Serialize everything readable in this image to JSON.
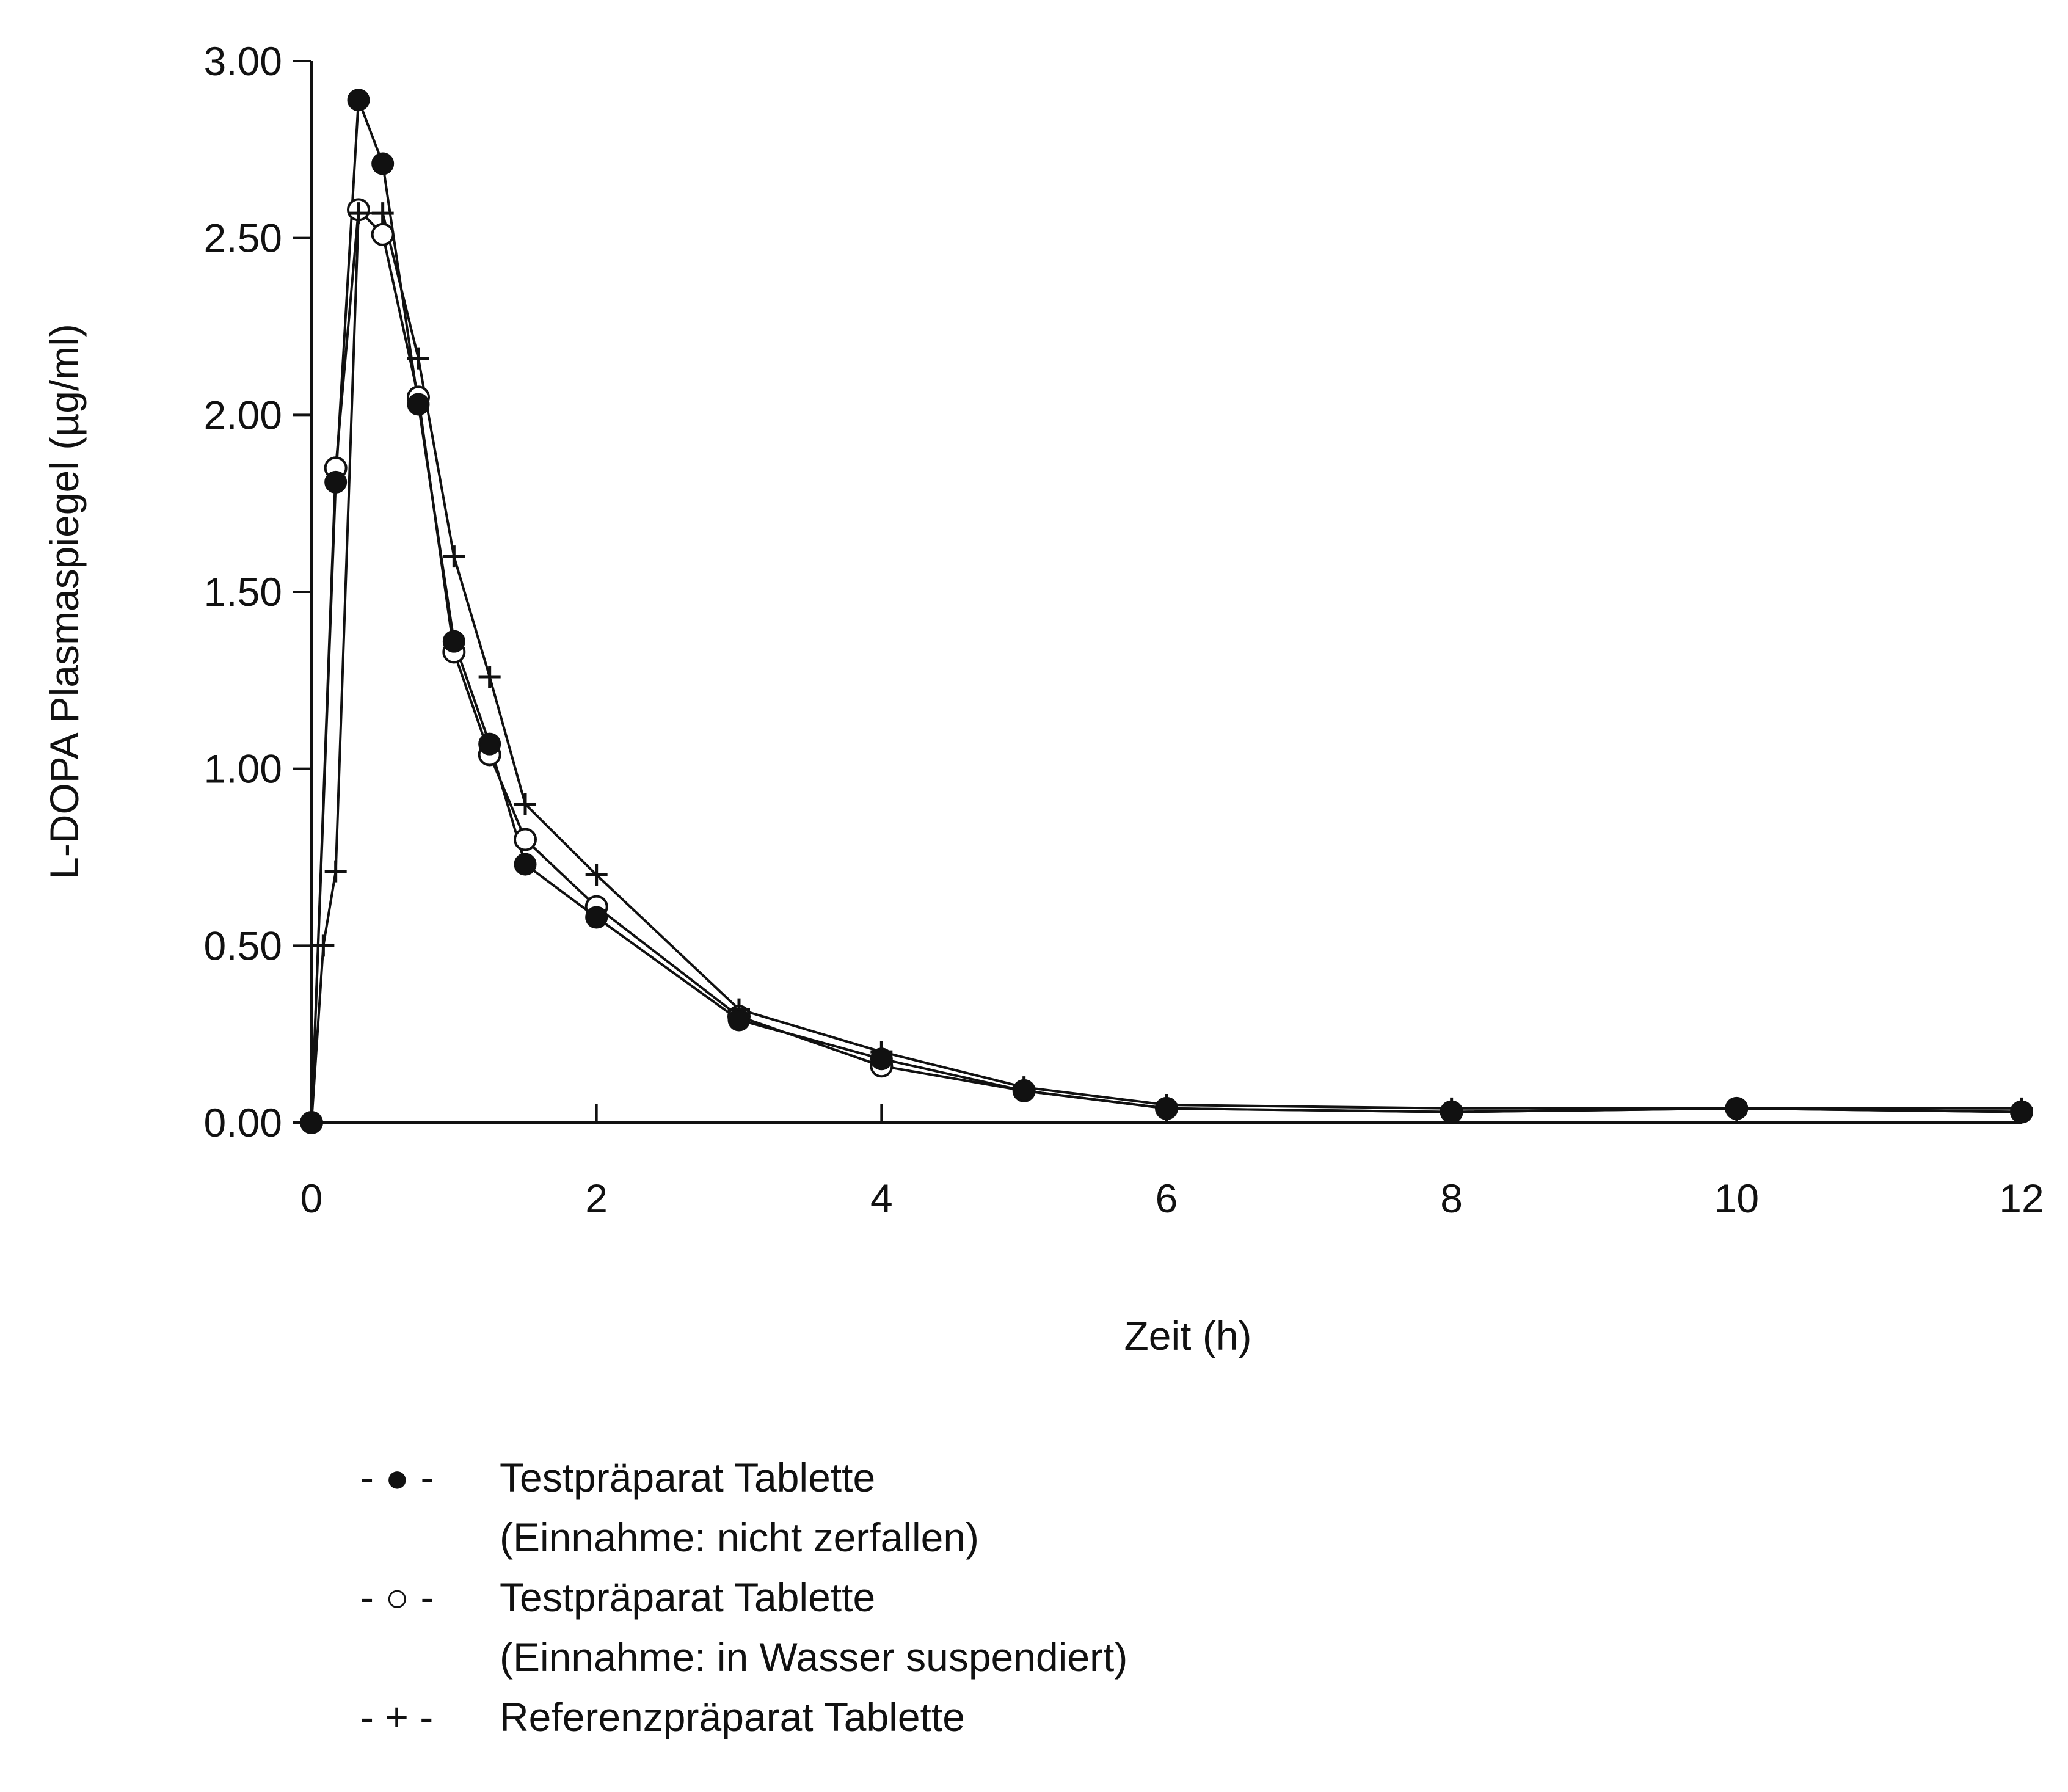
{
  "chart_data": {
    "type": "line",
    "title": "",
    "xlabel": "Zeit (h)",
    "ylabel": "L-DOPA Plasmaspiegel (µg/ml)",
    "xlim": [
      0,
      12
    ],
    "ylim": [
      0,
      3.0
    ],
    "x_ticks": [
      0,
      2,
      4,
      6,
      8,
      10,
      12
    ],
    "x_tick_labels": [
      "0",
      "2",
      "4",
      "6",
      "8",
      "10",
      "12"
    ],
    "y_ticks": [
      0,
      0.5,
      1.0,
      1.5,
      2.0,
      2.5,
      3.0
    ],
    "y_tick_labels": [
      "0.00",
      "0.50",
      "1.00",
      "1.50",
      "2.00",
      "2.50",
      "3.00"
    ],
    "grid": false,
    "legend_position": "bottom",
    "series": [
      {
        "name": "Testpräparat Tablette (Einnahme: nicht zerfallen)",
        "marker": "filled-circle",
        "points": [
          [
            0,
            0.0
          ],
          [
            0.17,
            1.81
          ],
          [
            0.33,
            2.89
          ],
          [
            0.5,
            2.71
          ],
          [
            0.75,
            2.03
          ],
          [
            1.0,
            1.36
          ],
          [
            1.25,
            1.07
          ],
          [
            1.5,
            0.73
          ],
          [
            2.0,
            0.58
          ],
          [
            3.0,
            0.29
          ],
          [
            4.0,
            0.18
          ],
          [
            5.0,
            0.09
          ],
          [
            6.0,
            0.04
          ],
          [
            8.0,
            0.03
          ],
          [
            10.0,
            0.04
          ],
          [
            12.0,
            0.03
          ]
        ]
      },
      {
        "name": "Testpräparat Tablette (Einnahme: in Wasser suspendiert)",
        "marker": "open-circle",
        "points": [
          [
            0,
            0.0
          ],
          [
            0.17,
            1.85
          ],
          [
            0.33,
            2.58
          ],
          [
            0.5,
            2.51
          ],
          [
            0.75,
            2.05
          ],
          [
            1.0,
            1.33
          ],
          [
            1.25,
            1.04
          ],
          [
            1.5,
            0.8
          ],
          [
            2.0,
            0.61
          ],
          [
            3.0,
            0.3
          ],
          [
            4.0,
            0.16
          ],
          [
            5.0,
            0.09
          ],
          [
            6.0,
            0.04
          ],
          [
            8.0,
            0.03
          ],
          [
            10.0,
            0.04
          ],
          [
            12.0,
            0.03
          ]
        ]
      },
      {
        "name": "Referenzpräparat Tablette",
        "marker": "plus",
        "points": [
          [
            0,
            0.0
          ],
          [
            0.083,
            0.5
          ],
          [
            0.17,
            0.71
          ],
          [
            0.33,
            2.57
          ],
          [
            0.5,
            2.57
          ],
          [
            0.75,
            2.16
          ],
          [
            1.0,
            1.6
          ],
          [
            1.25,
            1.26
          ],
          [
            1.5,
            0.9
          ],
          [
            2.0,
            0.7
          ],
          [
            3.0,
            0.32
          ],
          [
            4.0,
            0.2
          ],
          [
            5.0,
            0.1
          ],
          [
            6.0,
            0.05
          ],
          [
            8.0,
            0.04
          ],
          [
            10.0,
            0.04
          ],
          [
            12.0,
            0.04
          ]
        ]
      }
    ]
  },
  "legend": [
    {
      "symbol": "- ● -",
      "line1": "Testpräparat Tablette",
      "line2": "(Einnahme: nicht zerfallen)"
    },
    {
      "symbol": "- ○ -",
      "line1": "Testpräparat Tablette",
      "line2": "(Einnahme: in Wasser suspendiert)"
    },
    {
      "symbol": "- + -",
      "line1": "Referenzpräparat Tablette",
      "line2": ""
    }
  ]
}
